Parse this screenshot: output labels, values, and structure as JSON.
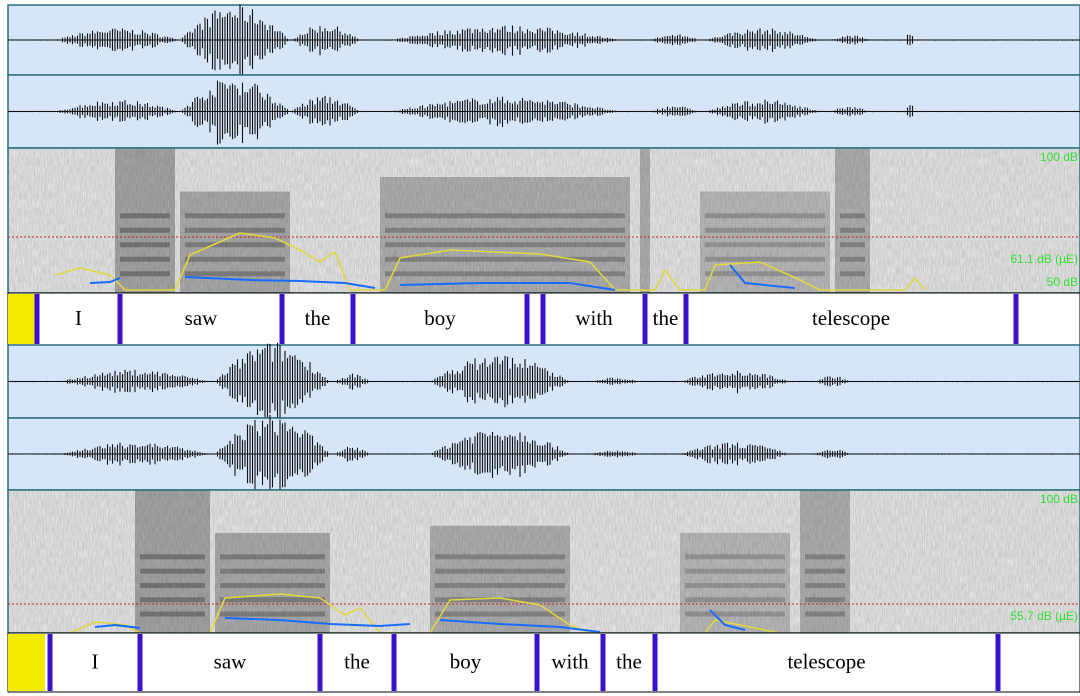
{
  "panels": [
    {
      "spectrogram_labels": [
        "100 dB",
        "61.1 dB (µE)",
        "50 dB"
      ],
      "words": [
        "I",
        "saw",
        "the",
        "boy",
        "with",
        "the",
        "telescope"
      ]
    },
    {
      "spectrogram_labels": [
        "100 dB",
        "55.7 dB (µE)"
      ],
      "words": [
        "I",
        "saw",
        "the",
        "boy",
        "with",
        "the",
        "telescope"
      ]
    }
  ]
}
